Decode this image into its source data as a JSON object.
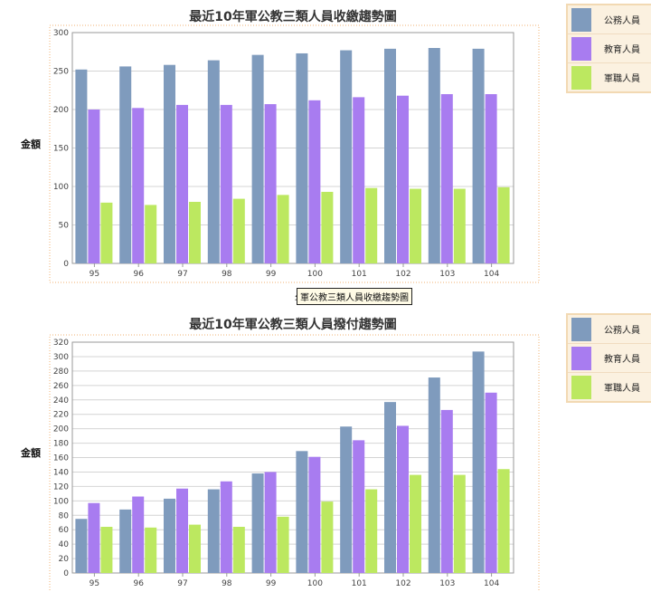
{
  "chart_data": [
    {
      "type": "bar",
      "title": "最近10年軍公教三類人員收繳趨勢圖",
      "ylabel": "金額",
      "xlabel": "",
      "categories": [
        "95",
        "96",
        "97",
        "98",
        "99",
        "100",
        "101",
        "102",
        "103",
        "104"
      ],
      "ylim": [
        0,
        300
      ],
      "yticks": [
        0,
        50,
        100,
        150,
        200,
        250,
        300
      ],
      "grid": true,
      "legend_position": "right",
      "series": [
        {
          "name": "公務人員",
          "color": "#7f9bbd",
          "values": [
            252,
            256,
            258,
            264,
            271,
            273,
            277,
            279,
            280,
            279
          ]
        },
        {
          "name": "教育人員",
          "color": "#a87cf0",
          "values": [
            200,
            202,
            206,
            206,
            207,
            212,
            216,
            218,
            220,
            220
          ]
        },
        {
          "name": "軍職人員",
          "color": "#bce860",
          "values": [
            79,
            76,
            80,
            84,
            89,
            93,
            98,
            97,
            97,
            99
          ]
        }
      ]
    },
    {
      "type": "bar",
      "title": "最近10年軍公教三類人員撥付趨勢圖",
      "ylabel": "金額",
      "xlabel": "",
      "categories": [
        "95",
        "96",
        "97",
        "98",
        "99",
        "100",
        "101",
        "102",
        "103",
        "104"
      ],
      "ylim": [
        0,
        320
      ],
      "yticks": [
        0,
        20,
        40,
        60,
        80,
        100,
        120,
        140,
        160,
        180,
        200,
        220,
        240,
        260,
        280,
        300,
        320
      ],
      "grid": true,
      "legend_position": "right",
      "series": [
        {
          "name": "公務人員",
          "color": "#7f9bbd",
          "values": [
            75,
            88,
            103,
            116,
            138,
            169,
            203,
            237,
            271,
            307
          ]
        },
        {
          "name": "教育人員",
          "color": "#a87cf0",
          "values": [
            97,
            106,
            117,
            127,
            140,
            161,
            184,
            204,
            226,
            250
          ]
        },
        {
          "name": "軍職人員",
          "color": "#bce860",
          "values": [
            64,
            63,
            67,
            64,
            78,
            99,
            116,
            136,
            136,
            144
          ]
        }
      ]
    }
  ],
  "tooltip": {
    "text": "軍公教三類人員收繳趨勢圖",
    "clipped_char": "年"
  }
}
